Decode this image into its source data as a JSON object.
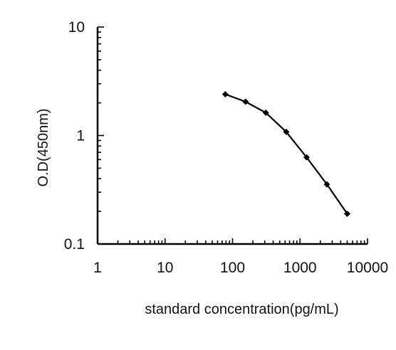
{
  "chart_data": {
    "type": "line",
    "title": "",
    "xlabel": "standard concentration(pg/mL)",
    "ylabel": "O.D(450nm)",
    "xscale": "log",
    "yscale": "log",
    "xlim": [
      1,
      10000
    ],
    "ylim": [
      0.1,
      10
    ],
    "xticks": [
      1,
      10,
      100,
      1000,
      10000
    ],
    "xtick_labels": [
      "1",
      "10",
      "100",
      "1000",
      "10000"
    ],
    "yticks": [
      0.1,
      1,
      10
    ],
    "ytick_labels": [
      "0.1",
      "1",
      "10"
    ],
    "grid": false,
    "legend": "none",
    "marker": "diamond",
    "color": "#000000",
    "series": [
      {
        "x": [
          78,
          156,
          312,
          625,
          1250,
          2500,
          5000
        ],
        "y": [
          2.4,
          2.05,
          1.62,
          1.08,
          0.63,
          0.355,
          0.19
        ]
      }
    ]
  }
}
